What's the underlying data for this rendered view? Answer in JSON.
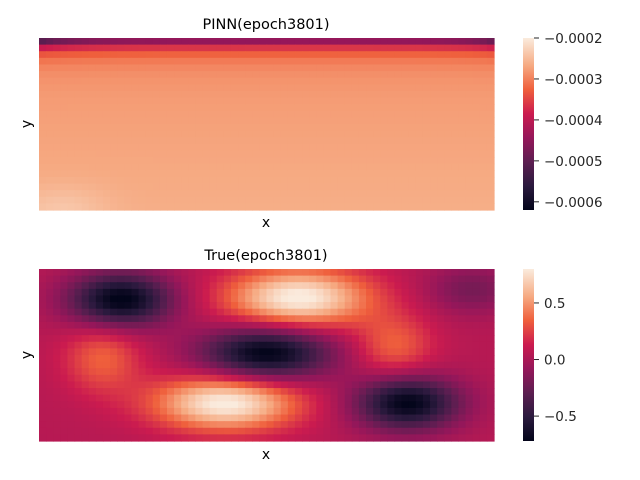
{
  "chart_data": [
    {
      "type": "heatmap",
      "title": "PINN(epoch3801)",
      "xlabel": "x",
      "ylabel": "y",
      "colormap": "rocket",
      "colorbar": {
        "min": -0.00062,
        "max": -0.0002,
        "ticks": [
          -0.0002,
          -0.0003,
          -0.0004,
          -0.0005,
          -0.0006
        ],
        "tick_labels": [
          "−0.0002",
          "−0.0003",
          "−0.0004",
          "−0.0005",
          "−0.0006"
        ]
      },
      "grid": false
    },
    {
      "type": "heatmap",
      "title": "True(epoch3801)",
      "xlabel": "x",
      "ylabel": "y",
      "colormap": "rocket",
      "colorbar": {
        "min": -0.72,
        "max": 0.8,
        "ticks": [
          0.5,
          0.0,
          -0.5
        ],
        "tick_labels": [
          "0.5",
          "0.0",
          "−0.5"
        ]
      },
      "grid": false
    }
  ]
}
